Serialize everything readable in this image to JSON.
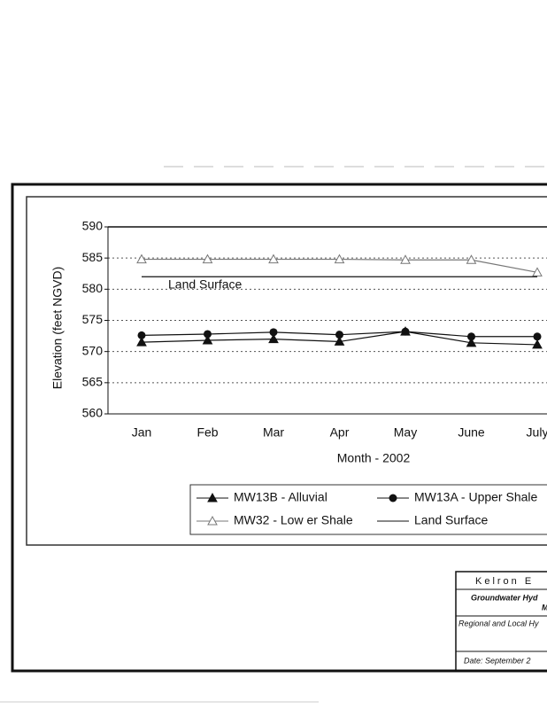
{
  "chart_data": {
    "type": "line",
    "y_label": "Elevation (feet NGVD)",
    "x_label": "Month - 2002",
    "categories": [
      "Jan",
      "Feb",
      "Mar",
      "Apr",
      "May",
      "June",
      "July"
    ],
    "ylim": [
      560,
      590
    ],
    "yticks": [
      560,
      565,
      570,
      575,
      580,
      585,
      590
    ],
    "grid": true,
    "series": [
      {
        "name": "MW13B - Alluvial",
        "color": "#111111",
        "marker": "triangle-filled",
        "values": [
          571.5,
          571.8,
          572.0,
          571.6,
          573.2,
          571.4,
          571.1
        ]
      },
      {
        "name": "MW13A - Upper Shale",
        "color": "#111111",
        "marker": "circle-filled",
        "values": [
          572.6,
          572.8,
          573.1,
          572.7,
          573.2,
          572.4,
          572.4
        ]
      },
      {
        "name": "MW32 - Low er Shale",
        "color": "#777777",
        "marker": "triangle-open",
        "values": [
          584.8,
          584.8,
          584.8,
          584.8,
          584.7,
          584.7,
          582.7
        ]
      },
      {
        "name": "Land Surface",
        "color": "#111111",
        "marker": "none",
        "values": [
          582,
          582,
          582,
          582,
          582,
          582,
          582
        ]
      }
    ],
    "annotation": "Land Surface"
  },
  "title_block": {
    "company": "Kelron E",
    "line1": "Groundwater Hyd",
    "line2": "M",
    "line3": "Regional and Local Hy",
    "date": "Date: September 2"
  }
}
